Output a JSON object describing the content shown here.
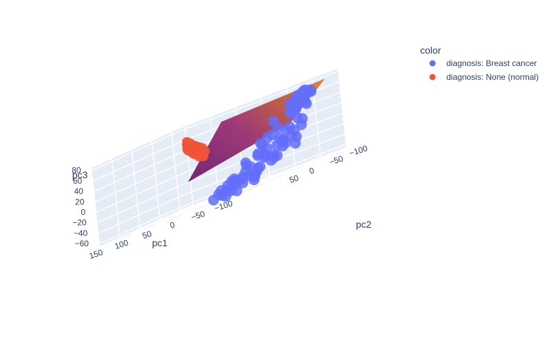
{
  "chart_data": {
    "type": "scatter3d",
    "title": "",
    "legend": {
      "title": "color",
      "placement": "top-right",
      "entries": [
        {
          "name": "diagnosis: Breast cancer",
          "color": "#636efa"
        },
        {
          "name": "diagnosis: None (normal)",
          "color": "#ef553b"
        }
      ]
    },
    "axes": {
      "x": {
        "title": "pc1",
        "range": [
          -150,
          160
        ],
        "ticks": [
          150,
          100,
          50,
          0,
          -50,
          -100
        ]
      },
      "y": {
        "title": "pc2",
        "range": [
          -120,
          100
        ],
        "ticks": [
          -100,
          -50,
          0,
          50
        ]
      },
      "z": {
        "title": "pc3",
        "range": [
          -65,
          85
        ],
        "ticks": [
          80,
          60,
          40,
          20,
          0,
          -20,
          -40,
          -60
        ]
      }
    },
    "grid": true,
    "plane": {
      "corners": [
        [
          5,
          70,
          -10
        ],
        [
          -85,
          -75,
          20
        ],
        [
          -160,
          -75,
          78
        ],
        [
          -70,
          70,
          78
        ]
      ],
      "colors": [
        "#6a1d6f",
        "#be5a3a",
        "#d8843f",
        "#9b3070"
      ]
    },
    "series": [
      {
        "name": "diagnosis: None (normal)",
        "color": "#ef553b",
        "points": [
          [
            110,
            -70,
            55
          ],
          [
            108,
            -68,
            53
          ],
          [
            112,
            -72,
            52
          ],
          [
            106,
            -67,
            50
          ],
          [
            109,
            -70,
            48
          ],
          [
            105,
            -64,
            47
          ],
          [
            102,
            -66,
            46
          ],
          [
            100,
            -63,
            45
          ],
          [
            98,
            -62,
            44
          ],
          [
            96,
            -60,
            43
          ],
          [
            94,
            -58,
            42
          ],
          [
            92,
            -57,
            42
          ],
          [
            90,
            -56,
            41
          ],
          [
            88,
            -55,
            40
          ],
          [
            86,
            -54,
            39
          ],
          [
            84,
            -52,
            38
          ],
          [
            82,
            -50,
            37
          ],
          [
            80,
            -49,
            36
          ],
          [
            78,
            -48,
            35
          ],
          [
            76,
            -47,
            35
          ],
          [
            74,
            -46,
            34
          ],
          [
            72,
            -45,
            33
          ],
          [
            70,
            -44,
            32
          ],
          [
            68,
            -42,
            31
          ],
          [
            66,
            -41,
            30
          ],
          [
            64,
            -40,
            30
          ],
          [
            62,
            -39,
            29
          ],
          [
            60,
            -37,
            28
          ],
          [
            58,
            -35,
            28
          ],
          [
            56,
            -34,
            27
          ],
          [
            54,
            -33,
            26
          ],
          [
            52,
            -32,
            25
          ],
          [
            107,
            -65,
            44
          ],
          [
            101,
            -60,
            41
          ],
          [
            95,
            -57,
            39
          ],
          [
            89,
            -52,
            36
          ],
          [
            83,
            -48,
            34
          ],
          [
            77,
            -45,
            32
          ],
          [
            71,
            -43,
            30
          ],
          [
            65,
            -39,
            28
          ],
          [
            59,
            -36,
            26
          ],
          [
            55,
            -30,
            24
          ],
          [
            50,
            -28,
            22
          ],
          [
            48,
            -30,
            29
          ],
          [
            45,
            -25,
            22
          ],
          [
            50,
            -26,
            33
          ],
          [
            47,
            -22,
            27
          ],
          [
            104,
            -62,
            50
          ],
          [
            99,
            -64,
            51
          ],
          [
            93,
            -61,
            46
          ],
          [
            87,
            -56,
            44
          ],
          [
            81,
            -53,
            42
          ],
          [
            75,
            -50,
            40
          ],
          [
            69,
            -47,
            37
          ],
          [
            63,
            -44,
            35
          ],
          [
            57,
            -40,
            33
          ],
          [
            53,
            -37,
            31
          ],
          [
            49,
            -35,
            30
          ],
          [
            113,
            -74,
            58
          ],
          [
            111,
            -73,
            57
          ],
          [
            111,
            -71,
            48
          ],
          [
            103,
            -69,
            54
          ],
          [
            97,
            -66,
            49
          ],
          [
            91,
            -63,
            47
          ],
          [
            85,
            -59,
            45
          ],
          [
            79,
            -55,
            43
          ],
          [
            73,
            -51,
            41
          ],
          [
            67,
            -48,
            39
          ],
          [
            61,
            -45,
            37
          ],
          [
            85,
            -50,
            36
          ],
          [
            78,
            -44,
            31
          ],
          [
            60,
            -32,
            24
          ]
        ]
      },
      {
        "name": "diagnosis: Breast cancer",
        "color": "#636efa",
        "points": [
          [
            -90,
            -95,
            65
          ],
          [
            -100,
            -100,
            70
          ],
          [
            -95,
            -90,
            58
          ],
          [
            -85,
            -98,
            62
          ],
          [
            -105,
            -92,
            60
          ],
          [
            -80,
            -85,
            55
          ],
          [
            -110,
            -100,
            66
          ],
          [
            -92,
            -105,
            68
          ],
          [
            -88,
            -92,
            50
          ],
          [
            -98,
            -85,
            52
          ],
          [
            -102,
            -95,
            48
          ],
          [
            -85,
            -88,
            45
          ],
          [
            -95,
            -80,
            42
          ],
          [
            -108,
            -90,
            44
          ],
          [
            -75,
            -90,
            40
          ],
          [
            -90,
            -75,
            38
          ],
          [
            -96,
            -98,
            56
          ],
          [
            -83,
            -96,
            59
          ],
          [
            -115,
            -95,
            63
          ],
          [
            -99,
            -88,
            61
          ],
          [
            -50,
            -80,
            35
          ],
          [
            -80,
            -70,
            10
          ],
          [
            -70,
            -65,
            0
          ],
          [
            -85,
            -55,
            -5
          ],
          [
            -95,
            -60,
            15
          ],
          [
            -75,
            -50,
            -10
          ],
          [
            -90,
            -45,
            -15
          ],
          [
            -100,
            -65,
            5
          ],
          [
            -65,
            -70,
            20
          ],
          [
            -110,
            -55,
            -8
          ],
          [
            -60,
            -40,
            -20
          ],
          [
            -80,
            -35,
            -25
          ],
          [
            -95,
            -40,
            -5
          ],
          [
            -70,
            -25,
            -18
          ],
          [
            -55,
            -55,
            10
          ],
          [
            -85,
            -60,
            -12
          ],
          [
            -105,
            -50,
            -2
          ],
          [
            -75,
            -40,
            -30
          ],
          [
            -65,
            -30,
            -22
          ],
          [
            -90,
            -30,
            -28
          ],
          [
            -40,
            -60,
            0
          ],
          [
            -45,
            -40,
            -15
          ],
          [
            -30,
            -30,
            -25
          ],
          [
            -35,
            -20,
            -35
          ],
          [
            -20,
            -10,
            -40
          ],
          [
            -50,
            -15,
            -30
          ],
          [
            -25,
            -35,
            -20
          ],
          [
            -55,
            -25,
            -38
          ],
          [
            -15,
            -20,
            -45
          ],
          [
            -40,
            -5,
            -42
          ],
          [
            -60,
            -10,
            -48
          ],
          [
            -30,
            0,
            -50
          ],
          [
            -45,
            5,
            -45
          ],
          [
            -20,
            10,
            -55
          ],
          [
            -55,
            15,
            -52
          ],
          [
            -35,
            20,
            -58
          ],
          [
            -10,
            -5,
            -48
          ],
          [
            -65,
            0,
            -55
          ],
          [
            -25,
            30,
            -60
          ],
          [
            -50,
            25,
            -62
          ],
          [
            -40,
            40,
            -64
          ],
          [
            -15,
            25,
            -56
          ],
          [
            -70,
            15,
            -44
          ],
          [
            -80,
            10,
            -40
          ],
          [
            -75,
            -5,
            -35
          ],
          [
            -60,
            -45,
            -8
          ],
          [
            -50,
            -35,
            -12
          ],
          [
            -45,
            -50,
            5
          ],
          [
            -65,
            -55,
            12
          ],
          [
            -100,
            -75,
            25
          ],
          [
            -105,
            -80,
            20
          ],
          [
            -110,
            -70,
            10
          ],
          [
            -95,
            -70,
            -20
          ],
          [
            -85,
            -20,
            -32
          ],
          [
            -70,
            5,
            -50
          ],
          [
            -30,
            10,
            -42
          ],
          [
            -5,
            5,
            -52
          ],
          [
            -20,
            45,
            -62
          ]
        ]
      }
    ]
  }
}
